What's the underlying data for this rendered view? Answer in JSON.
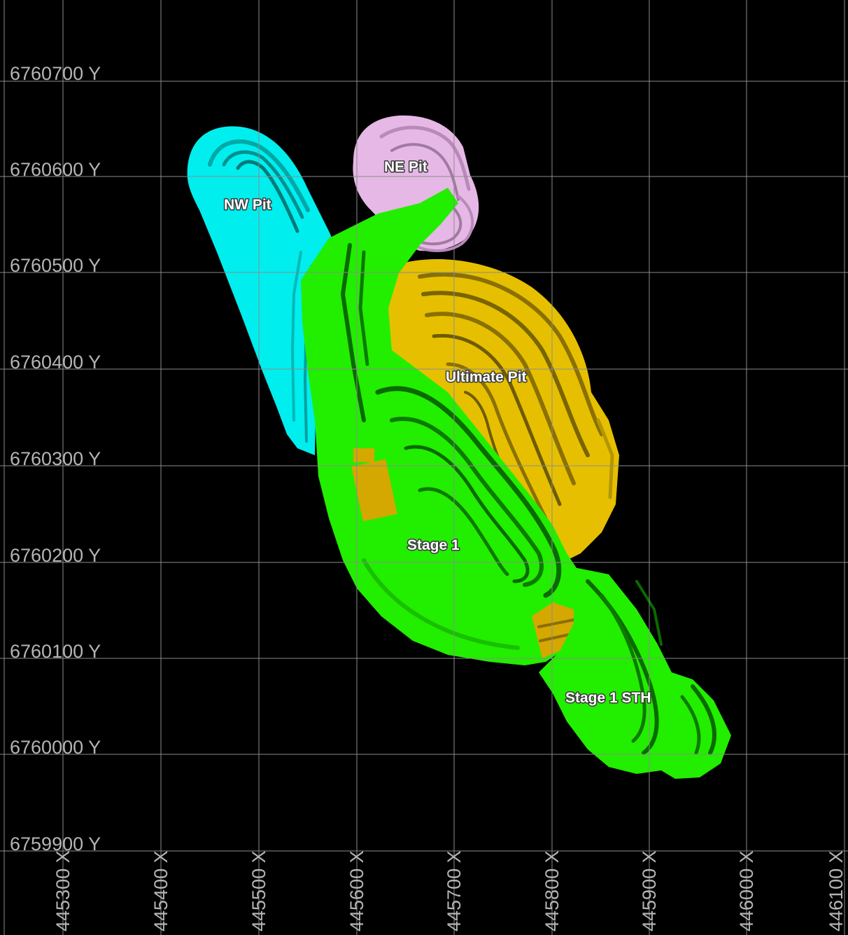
{
  "grid": {
    "y_labels": [
      "6760700 Y",
      "6760600 Y",
      "6760500 Y",
      "6760400 Y",
      "6760300 Y",
      "6760200 Y",
      "6760100 Y",
      "6760000 Y",
      "6759900 Y"
    ],
    "x_labels": [
      "445300 X",
      "445400 X",
      "445500 X",
      "445600 X",
      "445700 X",
      "445800 X",
      "445900 X",
      "446000 X",
      "446100 X"
    ]
  },
  "pits": {
    "nw": {
      "label": "NW Pit",
      "color": "#00eeee",
      "dark": "#009999"
    },
    "ne": {
      "label": "NE Pit",
      "color": "#e6b8e6",
      "dark": "#a07aa0"
    },
    "ultimate": {
      "label": "Ultimate Pit",
      "color": "#e6c000",
      "dark": "#8a7000"
    },
    "stage1": {
      "label": "Stage 1",
      "color": "#22ee00",
      "dark": "#0a6a00"
    },
    "stage1_sth": {
      "label": "Stage 1 STH",
      "color": "#22ee00",
      "dark": "#0a6a00"
    }
  }
}
